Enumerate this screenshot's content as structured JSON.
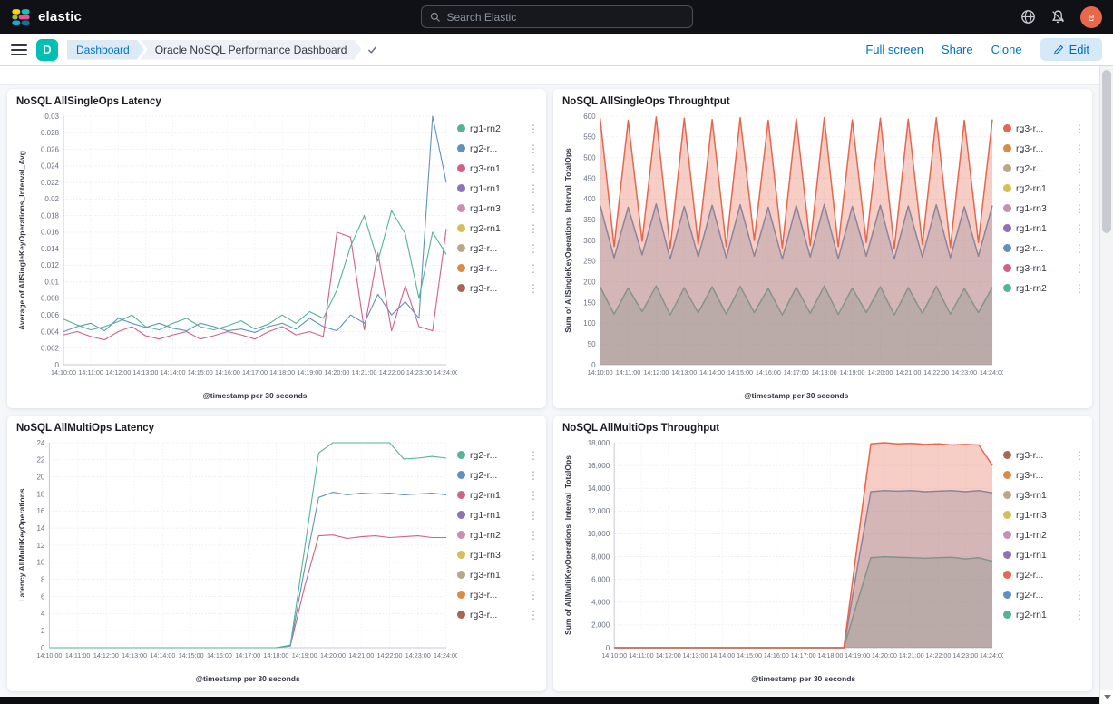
{
  "header": {
    "brand": "elastic",
    "search_placeholder": "Search Elastic",
    "avatar_initial": "e"
  },
  "toolbar": {
    "space_initial": "D",
    "breadcrumbs": [
      {
        "label": "Dashboard"
      },
      {
        "label": "Oracle NoSQL Performance Dashboard"
      }
    ],
    "actions": {
      "full_screen": "Full screen",
      "share": "Share",
      "clone": "Clone",
      "edit": "Edit"
    }
  },
  "chart_data": [
    {
      "type": "line",
      "title": "NoSQL AllSingleOps Latency",
      "ylabel": "Average of AllSingleKeyOperations_Interval_Avg",
      "xlabel": "@timestamp per 30 seconds",
      "ylim": [
        0,
        0.03
      ],
      "yticks": [
        "0",
        "0.002",
        "0.004",
        "0.006",
        "0.008",
        "0.01",
        "0.012",
        "0.014",
        "0.016",
        "0.018",
        "0.02",
        "0.022",
        "0.024",
        "0.026",
        "0.028",
        "0.03"
      ],
      "x_tick_labels": [
        "14:10:00",
        "14:11:00",
        "14:12:00",
        "14:13:00",
        "14:14:00",
        "14:15:00",
        "14:16:00",
        "14:17:00",
        "14:18:00",
        "14:19:00",
        "14:20:00",
        "14:21:00",
        "14:22:00",
        "14:23:00",
        "14:24:00"
      ],
      "grid": true,
      "legend_position": "right",
      "series": [
        {
          "name": "rg1-rn2",
          "color": "#54B399",
          "values": [
            0.0055,
            0.0048,
            0.0042,
            0.0046,
            0.0052,
            0.006,
            0.0046,
            0.0042,
            0.005,
            0.0056,
            0.0046,
            0.0042,
            0.0047,
            0.0053,
            0.0043,
            0.0049,
            0.006,
            0.005,
            0.0064,
            0.0056,
            0.009,
            0.0143,
            0.018,
            0.0125,
            0.0186,
            0.0158,
            0.008,
            0.016,
            0.0133
          ]
        },
        {
          "name": "rg2-r...",
          "color": "#6092C0",
          "values": [
            0.004,
            0.0046,
            0.005,
            0.0041,
            0.0056,
            0.005,
            0.0045,
            0.005,
            0.0044,
            0.0041,
            0.005,
            0.0046,
            0.0041,
            0.0043,
            0.0039,
            0.0046,
            0.005,
            0.0043,
            0.0056,
            0.0046,
            0.0041,
            0.006,
            0.005,
            0.0085,
            0.006,
            0.0076,
            0.0056,
            0.03,
            0.022
          ]
        },
        {
          "name": "rg3-rn1",
          "color": "#D36086",
          "values": [
            0.0036,
            0.004,
            0.0034,
            0.003,
            0.004,
            0.0046,
            0.0035,
            0.0031,
            0.0036,
            0.004,
            0.0031,
            0.0035,
            0.004,
            0.0036,
            0.0031,
            0.004,
            0.0046,
            0.0036,
            0.004,
            0.0034,
            0.016,
            0.0154,
            0.0042,
            0.0135,
            0.0041,
            0.0095,
            0.0046,
            0.0041,
            0.0164
          ]
        },
        {
          "name": "rg1-rn1",
          "color": "#9170B8",
          "values": null
        },
        {
          "name": "rg1-rn3",
          "color": "#CA8EAE",
          "values": null
        },
        {
          "name": "rg2-rn1",
          "color": "#D6BF57",
          "values": null
        },
        {
          "name": "rg2-r...",
          "color": "#B9A888",
          "values": null
        },
        {
          "name": "rg3-r...",
          "color": "#DA8B45",
          "values": null
        },
        {
          "name": "rg3-r...",
          "color": "#AA6556",
          "values": null
        }
      ]
    },
    {
      "type": "area",
      "title": "NoSQL AllSingleOps Throughtput",
      "ylabel": "Sum of AllSingleKeyOperations_Interval_TotalOps",
      "xlabel": "@timestamp per 30 seconds",
      "ylim": [
        0,
        600
      ],
      "yticks": [
        "0",
        "50",
        "100",
        "150",
        "200",
        "250",
        "300",
        "350",
        "400",
        "450",
        "500",
        "550",
        "600"
      ],
      "x_tick_labels": [
        "14:10:00",
        "14:11:00",
        "14:12:00",
        "14:13:00",
        "14:14:00",
        "14:15:00",
        "14:16:00",
        "14:17:00",
        "14:18:00",
        "14:19:00",
        "14:20:00",
        "14:21:00",
        "14:22:00",
        "14:23:00",
        "14:24:00"
      ],
      "grid": true,
      "legend_position": "right",
      "series": [
        {
          "name": "rg3-r...",
          "color": "#E7664C",
          "values": [
            595,
            285,
            590,
            298,
            598,
            280,
            595,
            290,
            592,
            285,
            596,
            300,
            590,
            282,
            594,
            288,
            596,
            285,
            591,
            295,
            595,
            280,
            593,
            290,
            596,
            283,
            590,
            295,
            592
          ]
        },
        {
          "name": "rg3-r...",
          "color": "#DA8B45",
          "values": null
        },
        {
          "name": "rg2-r...",
          "color": "#B9A888",
          "values": null
        },
        {
          "name": "rg2-rn1",
          "color": "#D6BF57",
          "values": null
        },
        {
          "name": "rg1-rn3",
          "color": "#CA8EAE",
          "values": null
        },
        {
          "name": "rg1-rn1",
          "color": "#9170B8",
          "values": null
        },
        {
          "name": "rg2-r...",
          "color": "#6092C0",
          "values": [
            385,
            258,
            380,
            265,
            388,
            255,
            382,
            260,
            385,
            258,
            386,
            262,
            380,
            255,
            384,
            260,
            387,
            256,
            382,
            262,
            385,
            255,
            383,
            260,
            386,
            258,
            381,
            262,
            384
          ]
        },
        {
          "name": "rg3-rn1",
          "color": "#D36086",
          "values": null
        },
        {
          "name": "rg1-rn2",
          "color": "#54B399",
          "values": [
            188,
            122,
            185,
            128,
            190,
            120,
            186,
            125,
            188,
            122,
            189,
            126,
            184,
            120,
            187,
            124,
            190,
            121,
            185,
            126,
            188,
            120,
            186,
            124,
            189,
            122,
            184,
            126,
            187
          ]
        }
      ]
    },
    {
      "type": "line",
      "title": "NoSQL AllMultiOps Latency",
      "ylabel": "Latency AllMultiKeyOperations",
      "xlabel": "@timestamp per 30 seconds",
      "ylim": [
        0,
        24
      ],
      "yticks": [
        "0",
        "2",
        "4",
        "6",
        "8",
        "10",
        "12",
        "14",
        "16",
        "18",
        "20",
        "22",
        "24"
      ],
      "x_tick_labels": [
        "14:10:00",
        "14:11:00",
        "14:12:00",
        "14:13:00",
        "14:14:00",
        "14:15:00",
        "14:16:00",
        "14:17:00",
        "14:18:00",
        "14:19:00",
        "14:20:00",
        "14:21:00",
        "14:22:00",
        "14:23:00",
        "14:24:00"
      ],
      "grid": true,
      "legend_position": "right",
      "series": [
        {
          "name": "rg2-r...",
          "color": "#54B399",
          "values": [
            0,
            0,
            0,
            0,
            0,
            0,
            0,
            0,
            0,
            0,
            0,
            0,
            0,
            0,
            0,
            0,
            0,
            0.3,
            11.5,
            22.8,
            24.3,
            24.6,
            24.5,
            24.4,
            24.2,
            22.1,
            22.2,
            22.4,
            22.2
          ]
        },
        {
          "name": "rg2-r...",
          "color": "#6092C0",
          "values": [
            0,
            0,
            0,
            0,
            0,
            0,
            0,
            0,
            0,
            0,
            0,
            0,
            0,
            0,
            0,
            0,
            0,
            0.2,
            9.2,
            17.6,
            18.2,
            17.9,
            18.1,
            18.0,
            18.1,
            17.9,
            18.0,
            18.1,
            17.9
          ]
        },
        {
          "name": "rg2-rn1",
          "color": "#D36086",
          "values": [
            0,
            0,
            0,
            0,
            0,
            0,
            0,
            0,
            0,
            0,
            0,
            0,
            0,
            0,
            0,
            0,
            0,
            0.2,
            7.1,
            13.1,
            13.2,
            12.8,
            13.0,
            13.1,
            12.9,
            13.0,
            13.1,
            12.9,
            12.9
          ]
        },
        {
          "name": "rg1-rn1",
          "color": "#9170B8",
          "values": null
        },
        {
          "name": "rg1-rn2",
          "color": "#CA8EAE",
          "values": null
        },
        {
          "name": "rg1-rn3",
          "color": "#D6BF57",
          "values": null
        },
        {
          "name": "rg3-rn1",
          "color": "#B9A888",
          "values": null
        },
        {
          "name": "rg3-r...",
          "color": "#DA8B45",
          "values": null
        },
        {
          "name": "rg3-r...",
          "color": "#AA6556",
          "values": null
        }
      ]
    },
    {
      "type": "area",
      "title": "NoSQL AllMultiOps Throughput",
      "ylabel": "Sum of AllMultiKeyOperations_Interval_TotalOps",
      "xlabel": "@timestamp per 30 seconds",
      "ylim": [
        0,
        18000
      ],
      "yticks": [
        "0",
        "2,000",
        "4,000",
        "6,000",
        "8,000",
        "10,000",
        "12,000",
        "14,000",
        "16,000",
        "18,000"
      ],
      "x_tick_labels": [
        "14:10:00",
        "14:11:00",
        "14:12:00",
        "14:13:00",
        "14:14:00",
        "14:15:00",
        "14:16:00",
        "14:17:00",
        "14:18:00",
        "14:19:00",
        "14:20:00",
        "14:21:00",
        "14:22:00",
        "14:23:00",
        "14:24:00"
      ],
      "grid": true,
      "legend_position": "right",
      "series": [
        {
          "name": "rg3-r...",
          "color": "#AA6556",
          "values": null
        },
        {
          "name": "rg3-r...",
          "color": "#DA8B45",
          "values": null
        },
        {
          "name": "rg3-rn1",
          "color": "#B9A888",
          "values": null
        },
        {
          "name": "rg1-rn3",
          "color": "#D6BF57",
          "values": null
        },
        {
          "name": "rg1-rn2",
          "color": "#CA8EAE",
          "values": null
        },
        {
          "name": "rg1-rn1",
          "color": "#9170B8",
          "values": null
        },
        {
          "name": "rg2-r...",
          "color": "#E7664C",
          "values": [
            0,
            0,
            0,
            0,
            0,
            0,
            0,
            0,
            0,
            0,
            0,
            0,
            0,
            0,
            0,
            0,
            0,
            0,
            9000,
            17900,
            18000,
            17900,
            17950,
            17850,
            17900,
            17800,
            17850,
            17800,
            16000
          ]
        },
        {
          "name": "rg2-r...",
          "color": "#6092C0",
          "values": [
            0,
            0,
            0,
            0,
            0,
            0,
            0,
            0,
            0,
            0,
            0,
            0,
            0,
            0,
            0,
            0,
            0,
            0,
            7000,
            13700,
            13800,
            13750,
            13800,
            13700,
            13750,
            13800,
            13700,
            13800,
            13600
          ]
        },
        {
          "name": "rg2-rn1",
          "color": "#54B399",
          "values": [
            0,
            0,
            0,
            0,
            0,
            0,
            0,
            0,
            0,
            0,
            0,
            0,
            0,
            0,
            0,
            0,
            0,
            0,
            4000,
            7900,
            8000,
            7950,
            7900,
            7850,
            7900,
            7950,
            7800,
            7900,
            7600
          ]
        }
      ]
    }
  ]
}
